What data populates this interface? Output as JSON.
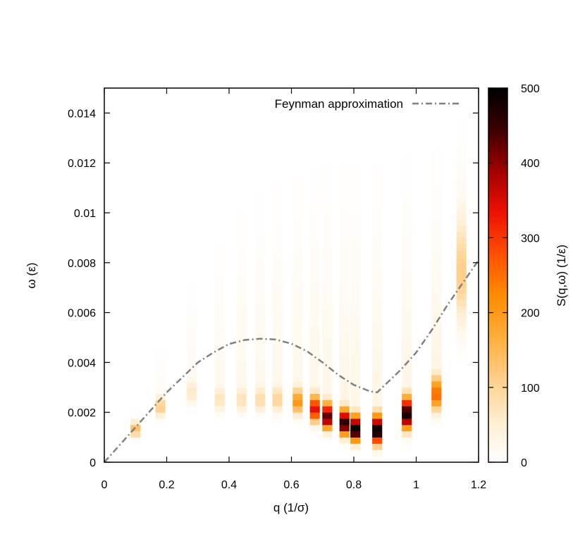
{
  "chart_data": {
    "type": "heatmap",
    "title": "",
    "xlabel": "q (1/σ)",
    "ylabel": "ω (ε)",
    "colorbar_label": "S(q,ω) (1/ε)",
    "xlim": [
      0,
      1.2
    ],
    "ylim": [
      0,
      0.015
    ],
    "clim": [
      0,
      500
    ],
    "x_ticks": [
      0,
      0.2,
      0.4,
      0.6,
      0.8,
      1,
      1.2
    ],
    "x_tick_labels": [
      "0",
      "0.2",
      "0.4",
      "0.6",
      "0.8",
      "1",
      "1.2"
    ],
    "y_ticks": [
      0,
      0.002,
      0.004,
      0.006,
      0.008,
      0.01,
      0.012,
      0.014
    ],
    "y_tick_labels": [
      "0",
      "0.002",
      "0.004",
      "0.006",
      "0.008",
      "0.01",
      "0.012",
      "0.014"
    ],
    "colorbar_ticks": [
      0,
      100,
      200,
      300,
      400,
      500
    ],
    "colorbar_tick_labels": [
      "0",
      "100",
      "200",
      "300",
      "400",
      "500"
    ],
    "colormap": [
      "#ffffff",
      "#ffedd0",
      "#ffcf8a",
      "#ffae3a",
      "#ff8c00",
      "#ff5000",
      "#ee1100",
      "#a30000",
      "#3a0000",
      "#000000"
    ],
    "legend": {
      "label": "Feynman approximation",
      "style": "dash-dot",
      "color": "#808080",
      "position": "top-right"
    },
    "feynman_curve": {
      "q": [
        0,
        0.05,
        0.1,
        0.15,
        0.2,
        0.25,
        0.3,
        0.35,
        0.4,
        0.45,
        0.5,
        0.55,
        0.6,
        0.65,
        0.7,
        0.75,
        0.8,
        0.85,
        0.875,
        0.9,
        0.95,
        1.0,
        1.05,
        1.1,
        1.15,
        1.2
      ],
      "omega": [
        0,
        0.0007,
        0.0014,
        0.0021,
        0.0028,
        0.0034,
        0.004,
        0.0044,
        0.00474,
        0.0049,
        0.00495,
        0.00492,
        0.00475,
        0.00445,
        0.004,
        0.0035,
        0.0031,
        0.00285,
        0.0028,
        0.0031,
        0.0037,
        0.0044,
        0.0053,
        0.0063,
        0.0072,
        0.0081
      ]
    },
    "columns": [
      {
        "q": 0.1,
        "peak_omega": 0.0013,
        "peak_value": 140,
        "tail_top": 0.0028,
        "tail_value": 12,
        "lower_width": 0.00025
      },
      {
        "q": 0.18,
        "peak_omega": 0.0022,
        "peak_value": 110,
        "tail_top": 0.0055,
        "tail_value": 15,
        "lower_width": 0.00035
      },
      {
        "q": 0.28,
        "peak_omega": 0.0028,
        "peak_value": 60,
        "tail_top": 0.009,
        "tail_value": 18,
        "lower_width": 0.00045
      },
      {
        "q": 0.37,
        "peak_omega": 0.0025,
        "peak_value": 70,
        "tail_top": 0.011,
        "tail_value": 20,
        "lower_width": 0.00045
      },
      {
        "q": 0.44,
        "peak_omega": 0.0025,
        "peak_value": 75,
        "tail_top": 0.0125,
        "tail_value": 22,
        "lower_width": 0.00045
      },
      {
        "q": 0.5,
        "peak_omega": 0.0025,
        "peak_value": 85,
        "tail_top": 0.0135,
        "tail_value": 22,
        "lower_width": 0.00045
      },
      {
        "q": 0.555,
        "peak_omega": 0.0025,
        "peak_value": 100,
        "tail_top": 0.014,
        "tail_value": 24,
        "lower_width": 0.00045
      },
      {
        "q": 0.62,
        "peak_omega": 0.0024,
        "peak_value": 200,
        "tail_top": 0.0145,
        "tail_value": 24,
        "lower_width": 0.00045
      },
      {
        "q": 0.675,
        "peak_omega": 0.0021,
        "peak_value": 340,
        "tail_top": 0.0148,
        "tail_value": 26,
        "lower_width": 0.00045
      },
      {
        "q": 0.715,
        "peak_omega": 0.0018,
        "peak_value": 430,
        "tail_top": 0.015,
        "tail_value": 26,
        "lower_width": 0.00045
      },
      {
        "q": 0.77,
        "peak_omega": 0.00155,
        "peak_value": 470,
        "tail_top": 0.015,
        "tail_value": 28,
        "lower_width": 0.00045
      },
      {
        "q": 0.805,
        "peak_omega": 0.0013,
        "peak_value": 500,
        "tail_top": 0.015,
        "tail_value": 28,
        "lower_width": 0.00045
      },
      {
        "q": 0.875,
        "peak_omega": 0.00125,
        "peak_value": 500,
        "tail_top": 0.015,
        "tail_value": 30,
        "lower_width": 0.0005
      },
      {
        "q": 0.97,
        "peak_omega": 0.0019,
        "peak_value": 480,
        "tail_top": 0.015,
        "tail_value": 30,
        "lower_width": 0.00055
      },
      {
        "q": 1.065,
        "peak_omega": 0.0027,
        "peak_value": 250,
        "tail_top": 0.015,
        "tail_value": 32,
        "lower_width": 0.0006
      },
      {
        "q": 1.145,
        "peak_omega": 0.0075,
        "peak_value": 110,
        "tail_top": 0.015,
        "tail_value": 40,
        "lower_width": 0.0018
      }
    ],
    "column_width_q": 0.032
  }
}
